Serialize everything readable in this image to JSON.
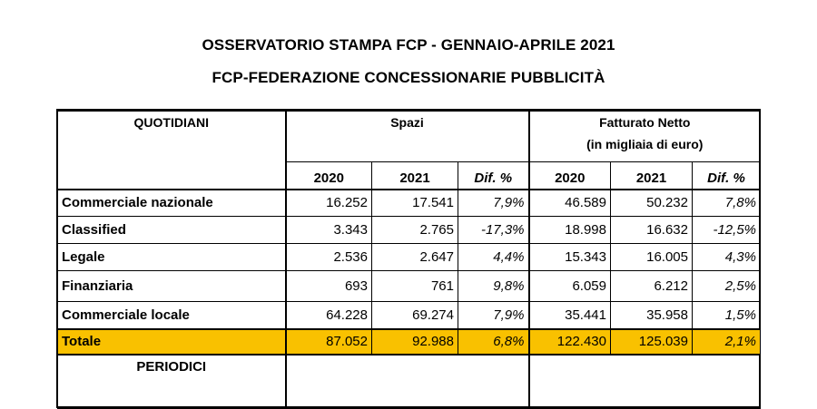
{
  "title_line1": "OSSERVATORIO STAMPA FCP - GENNAIO-APRILE 2021",
  "title_line2": "FCP-FEDERAZIONE CONCESSIONARIE PUBBLICITÀ",
  "table": {
    "section_quotidiani": "QUOTIDIANI",
    "group_spazi": "Spazi",
    "group_fatturato": "Fatturato Netto",
    "group_fatturato_sub": "(in migliaia di euro)",
    "col_2020": "2020",
    "col_2021": "2021",
    "col_dif": "Dif. %",
    "rows": [
      {
        "label": "Commerciale nazionale",
        "s2020": "16.252",
        "s2021": "17.541",
        "sdif": "7,9%",
        "f2020": "46.589",
        "f2021": "50.232",
        "fdif": "7,8%"
      },
      {
        "label": "Classified",
        "s2020": "3.343",
        "s2021": "2.765",
        "sdif": "-17,3%",
        "f2020": "18.998",
        "f2021": "16.632",
        "fdif": "-12,5%"
      },
      {
        "label": "Legale",
        "s2020": "2.536",
        "s2021": "2.647",
        "sdif": "4,4%",
        "f2020": "15.343",
        "f2021": "16.005",
        "fdif": "4,3%"
      },
      {
        "label": "Finanziaria",
        "s2020": "693",
        "s2021": "761",
        "sdif": "9,8%",
        "f2020": "6.059",
        "f2021": "6.212",
        "fdif": "2,5%"
      },
      {
        "label": "Commerciale locale",
        "s2020": "64.228",
        "s2021": "69.274",
        "sdif": "7,9%",
        "f2020": "35.441",
        "f2021": "35.958",
        "fdif": "1,5%"
      }
    ],
    "total": {
      "label": "Totale",
      "s2020": "87.052",
      "s2021": "92.988",
      "sdif": "6,8%",
      "f2020": "122.430",
      "f2021": "125.039",
      "fdif": "2,1%"
    },
    "section_periodici": "PERIODICI"
  },
  "colors": {
    "total_row": "#f9c100"
  }
}
